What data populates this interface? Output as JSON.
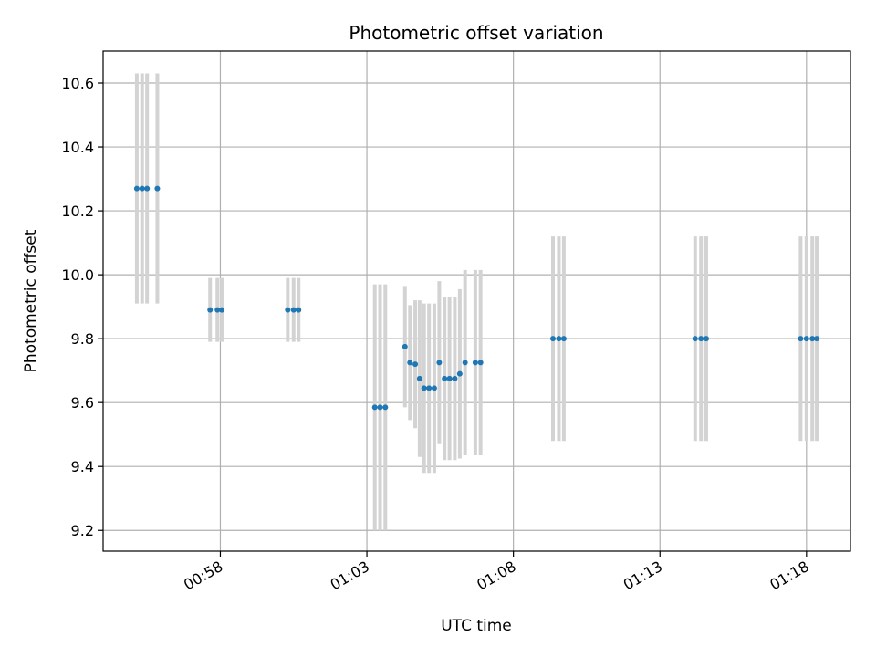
{
  "chart_data": {
    "type": "scatter",
    "title": "Photometric offset variation",
    "xlabel": "UTC time",
    "ylabel": "Photometric offset",
    "x_unit": "minutes after 00:00 UTC",
    "xlim": [
      54.0,
      79.5
    ],
    "ylim": [
      9.135,
      10.7
    ],
    "x_ticks": [
      {
        "value": 58,
        "label": "00:58"
      },
      {
        "value": 63,
        "label": "01:03"
      },
      {
        "value": 68,
        "label": "01:08"
      },
      {
        "value": 73,
        "label": "01:13"
      },
      {
        "value": 78,
        "label": "01:18"
      }
    ],
    "y_ticks": [
      {
        "value": 9.2,
        "label": "9.2"
      },
      {
        "value": 9.4,
        "label": "9.4"
      },
      {
        "value": 9.6,
        "label": "9.6"
      },
      {
        "value": 9.8,
        "label": "9.8"
      },
      {
        "value": 10.0,
        "label": "10.0"
      },
      {
        "value": 10.2,
        "label": "10.2"
      },
      {
        "value": 10.4,
        "label": "10.4"
      },
      {
        "value": 10.6,
        "label": "10.6"
      }
    ],
    "grid": true,
    "colors": {
      "points": "#1f77b4",
      "errorbars": "#d3d3d3",
      "grid": "#b0b0b0"
    },
    "points": [
      {
        "x": 55.15,
        "y": 10.27,
        "err": 0.36
      },
      {
        "x": 55.33,
        "y": 10.27,
        "err": 0.36
      },
      {
        "x": 55.5,
        "y": 10.27,
        "err": 0.36
      },
      {
        "x": 55.85,
        "y": 10.27,
        "err": 0.36
      },
      {
        "x": 57.65,
        "y": 9.89,
        "err": 0.1
      },
      {
        "x": 57.9,
        "y": 9.89,
        "err": 0.1
      },
      {
        "x": 58.05,
        "y": 9.89,
        "err": 0.1
      },
      {
        "x": 60.3,
        "y": 9.89,
        "err": 0.1
      },
      {
        "x": 60.5,
        "y": 9.89,
        "err": 0.1
      },
      {
        "x": 60.67,
        "y": 9.89,
        "err": 0.1
      },
      {
        "x": 63.27,
        "y": 9.585,
        "err": 0.385
      },
      {
        "x": 63.45,
        "y": 9.585,
        "err": 0.385
      },
      {
        "x": 63.63,
        "y": 9.585,
        "err": 0.385
      },
      {
        "x": 64.3,
        "y": 9.775,
        "err": 0.19
      },
      {
        "x": 64.47,
        "y": 9.725,
        "err": 0.18
      },
      {
        "x": 64.65,
        "y": 9.72,
        "err": 0.2
      },
      {
        "x": 64.8,
        "y": 9.675,
        "err": 0.245
      },
      {
        "x": 64.95,
        "y": 9.645,
        "err": 0.265
      },
      {
        "x": 65.12,
        "y": 9.645,
        "err": 0.265
      },
      {
        "x": 65.3,
        "y": 9.645,
        "err": 0.265
      },
      {
        "x": 65.47,
        "y": 9.725,
        "err": 0.255
      },
      {
        "x": 65.65,
        "y": 9.675,
        "err": 0.255
      },
      {
        "x": 65.82,
        "y": 9.675,
        "err": 0.255
      },
      {
        "x": 66.0,
        "y": 9.675,
        "err": 0.255
      },
      {
        "x": 66.17,
        "y": 9.69,
        "err": 0.265
      },
      {
        "x": 66.35,
        "y": 9.725,
        "err": 0.29
      },
      {
        "x": 66.7,
        "y": 9.725,
        "err": 0.29
      },
      {
        "x": 66.88,
        "y": 9.725,
        "err": 0.29
      },
      {
        "x": 69.35,
        "y": 9.8,
        "err": 0.32
      },
      {
        "x": 69.55,
        "y": 9.8,
        "err": 0.32
      },
      {
        "x": 69.72,
        "y": 9.8,
        "err": 0.32
      },
      {
        "x": 74.2,
        "y": 9.8,
        "err": 0.32
      },
      {
        "x": 74.4,
        "y": 9.8,
        "err": 0.32
      },
      {
        "x": 74.58,
        "y": 9.8,
        "err": 0.32
      },
      {
        "x": 77.8,
        "y": 9.8,
        "err": 0.32
      },
      {
        "x": 78.0,
        "y": 9.8,
        "err": 0.32
      },
      {
        "x": 78.2,
        "y": 9.8,
        "err": 0.32
      },
      {
        "x": 78.35,
        "y": 9.8,
        "err": 0.32
      }
    ]
  }
}
